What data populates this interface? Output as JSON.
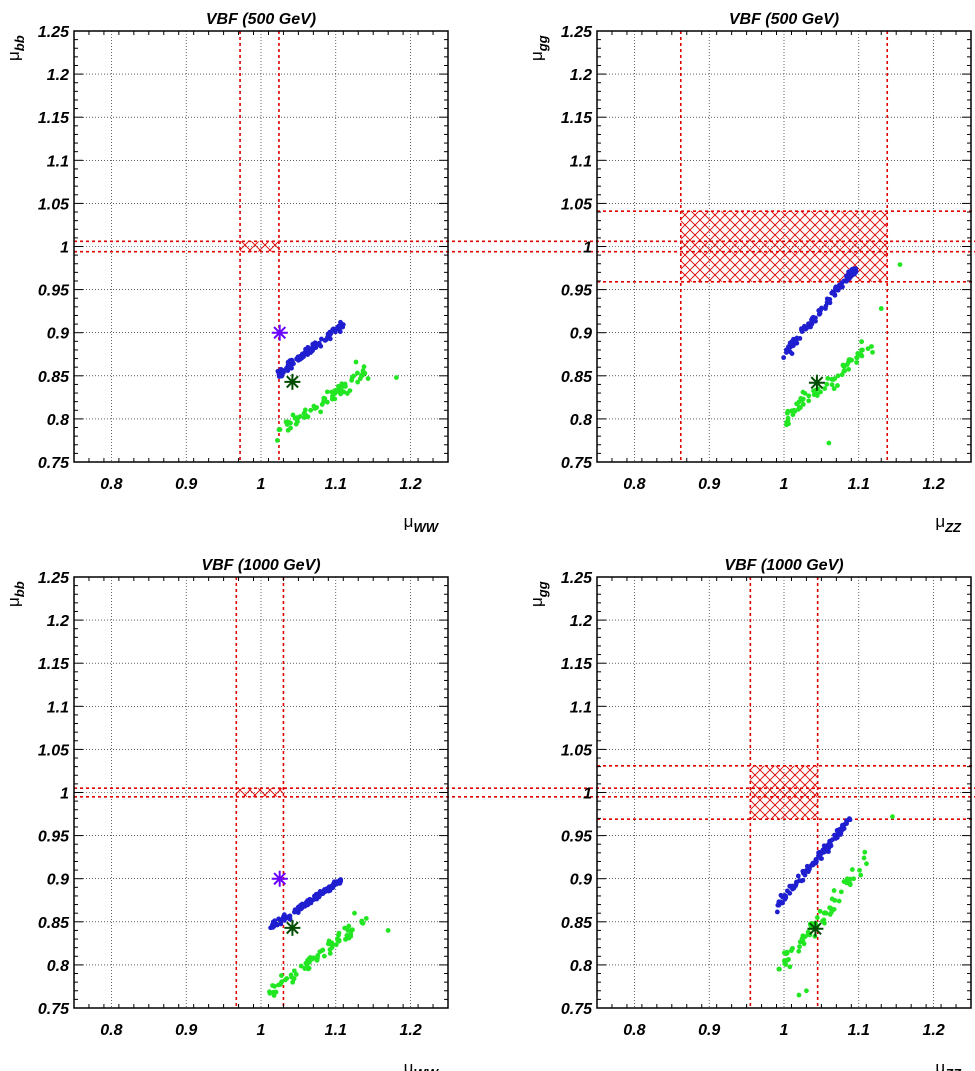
{
  "chart_data": [
    {
      "type": "scatter",
      "title": "VBF (500 GeV)",
      "xlabel": {
        "main": "μ",
        "sub": "WW"
      },
      "ylabel": {
        "main": "μ",
        "sub": "bb"
      },
      "xlim": [
        0.75,
        1.25
      ],
      "ylim": [
        0.75,
        1.25
      ],
      "xticks": [
        "0.8",
        "0.9",
        "1",
        "1.1",
        "1.2"
      ],
      "yticks": [
        "0.75",
        "0.8",
        "0.85",
        "0.9",
        "0.95",
        "1",
        "1.05",
        "1.1",
        "1.15",
        "1.2",
        "1.25"
      ],
      "grid": true,
      "band": {
        "x": [
          0.972,
          1.024
        ],
        "y": [
          0.994,
          1.006
        ],
        "color": "#e00000"
      },
      "blue_cloud": {
        "x0": 1.02,
        "y0": 0.85,
        "x1": 1.11,
        "y1": 0.91,
        "spread": 0.006,
        "n": 110
      },
      "green_cloud": {
        "x0": 1.02,
        "y0": 0.78,
        "x1": 1.14,
        "y1": 0.856,
        "spread": 0.012,
        "n": 70
      },
      "extra_green": [
        [
          1.181,
          0.848
        ],
        [
          1.127,
          0.866
        ]
      ],
      "markers": [
        {
          "x": 1.025,
          "y": 0.9,
          "color": "#6a00ff",
          "label": "blue-star"
        },
        {
          "x": 1.042,
          "y": 0.843,
          "color": "#004d00",
          "label": "green-star"
        }
      ]
    },
    {
      "type": "scatter",
      "title": "VBF (500 GeV)",
      "xlabel": {
        "main": "μ",
        "sub": "ZZ"
      },
      "ylabel": {
        "main": "μ",
        "sub": "gg"
      },
      "xlim": [
        0.75,
        1.25
      ],
      "ylim": [
        0.75,
        1.25
      ],
      "xticks": [
        "0.8",
        "0.9",
        "1",
        "1.1",
        "1.2"
      ],
      "yticks": [
        "0.75",
        "0.8",
        "0.85",
        "0.9",
        "0.95",
        "1",
        "1.05",
        "1.1",
        "1.15",
        "1.2",
        "1.25"
      ],
      "grid": true,
      "band": {
        "x": [
          0.862,
          1.138
        ],
        "y": [
          0.959,
          1.041
        ],
        "color": "#e00000"
      },
      "blue_cloud": {
        "x0": 1.0,
        "y0": 0.875,
        "x1": 1.095,
        "y1": 0.975,
        "spread": 0.008,
        "n": 110
      },
      "green_cloud": {
        "x0": 1.0,
        "y0": 0.8,
        "x1": 1.12,
        "y1": 0.888,
        "spread": 0.014,
        "n": 70
      },
      "extra_green": [
        [
          1.155,
          0.979
        ],
        [
          1.13,
          0.928
        ],
        [
          1.06,
          0.772
        ]
      ],
      "markers": [
        {
          "x": 1.044,
          "y": 0.842,
          "color": "#004d00",
          "label": "green-star"
        }
      ]
    },
    {
      "type": "scatter",
      "title": "VBF (1000 GeV)",
      "xlabel": {
        "main": "μ",
        "sub": "WW"
      },
      "ylabel": {
        "main": "μ",
        "sub": "bb"
      },
      "xlim": [
        0.75,
        1.25
      ],
      "ylim": [
        0.75,
        1.25
      ],
      "xticks": [
        "0.8",
        "0.9",
        "1",
        "1.1",
        "1.2"
      ],
      "yticks": [
        "0.75",
        "0.8",
        "0.85",
        "0.9",
        "0.95",
        "1",
        "1.05",
        "1.1",
        "1.15",
        "1.2",
        "1.25"
      ],
      "grid": true,
      "band": {
        "x": [
          0.967,
          1.03
        ],
        "y": [
          0.995,
          1.005
        ],
        "color": "#e00000"
      },
      "blue_cloud": {
        "x0": 1.01,
        "y0": 0.842,
        "x1": 1.11,
        "y1": 0.9,
        "spread": 0.006,
        "n": 110
      },
      "green_cloud": {
        "x0": 1.01,
        "y0": 0.768,
        "x1": 1.14,
        "y1": 0.852,
        "spread": 0.012,
        "n": 70
      },
      "extra_green": [
        [
          1.17,
          0.84
        ],
        [
          1.125,
          0.86
        ]
      ],
      "markers": [
        {
          "x": 1.025,
          "y": 0.9,
          "color": "#6a00ff",
          "label": "blue-star"
        },
        {
          "x": 1.042,
          "y": 0.843,
          "color": "#004d00",
          "label": "green-star"
        }
      ]
    },
    {
      "type": "scatter",
      "title": "VBF (1000 GeV)",
      "xlabel": {
        "main": "μ",
        "sub": "ZZ"
      },
      "ylabel": {
        "main": "μ",
        "sub": "gg"
      },
      "xlim": [
        0.75,
        1.25
      ],
      "ylim": [
        0.75,
        1.25
      ],
      "xticks": [
        "0.8",
        "0.9",
        "1",
        "1.1",
        "1.2"
      ],
      "yticks": [
        "0.75",
        "0.8",
        "0.85",
        "0.9",
        "0.95",
        "1",
        "1.05",
        "1.1",
        "1.15",
        "1.2",
        "1.25"
      ],
      "grid": true,
      "band": {
        "x": [
          0.955,
          1.045
        ],
        "y": [
          0.969,
          1.031
        ],
        "color": "#e00000"
      },
      "blue_cloud": {
        "x0": 0.99,
        "y0": 0.868,
        "x1": 1.09,
        "y1": 0.97,
        "spread": 0.008,
        "n": 110
      },
      "green_cloud": {
        "x0": 0.99,
        "y0": 0.79,
        "x1": 1.11,
        "y1": 0.92,
        "spread": 0.014,
        "n": 70
      },
      "extra_green": [
        [
          1.145,
          0.972
        ],
        [
          1.02,
          0.765
        ],
        [
          1.03,
          0.77
        ]
      ],
      "markers": [
        {
          "x": 1.042,
          "y": 0.842,
          "color": "#004d00",
          "label": "green-star"
        }
      ]
    }
  ]
}
